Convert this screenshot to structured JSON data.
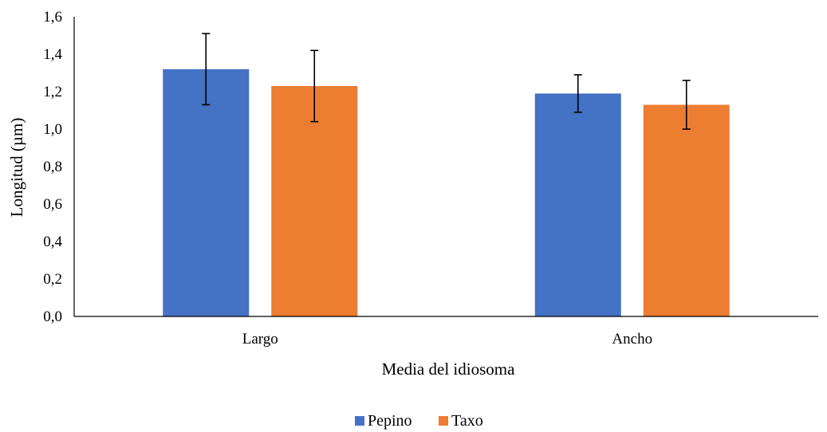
{
  "chart_data": {
    "type": "bar",
    "title": "",
    "xlabel": "Media del idiosoma",
    "ylabel": "Longitud (µm)",
    "categories": [
      "Largo",
      "Ancho"
    ],
    "ylim": [
      0,
      1.6
    ],
    "yticks": [
      "0,0",
      "0,2",
      "0,4",
      "0,6",
      "0,8",
      "1,0",
      "1,2",
      "1,4",
      "1,6"
    ],
    "grid": false,
    "legend": "bottom",
    "series": [
      {
        "name": "Pepino",
        "color": "#4472C4",
        "values": [
          1.32,
          1.19
        ],
        "errors": [
          0.19,
          0.1
        ]
      },
      {
        "name": "Taxo",
        "color": "#ED7D31",
        "values": [
          1.23,
          1.13
        ],
        "errors": [
          0.19,
          0.13
        ]
      }
    ]
  }
}
